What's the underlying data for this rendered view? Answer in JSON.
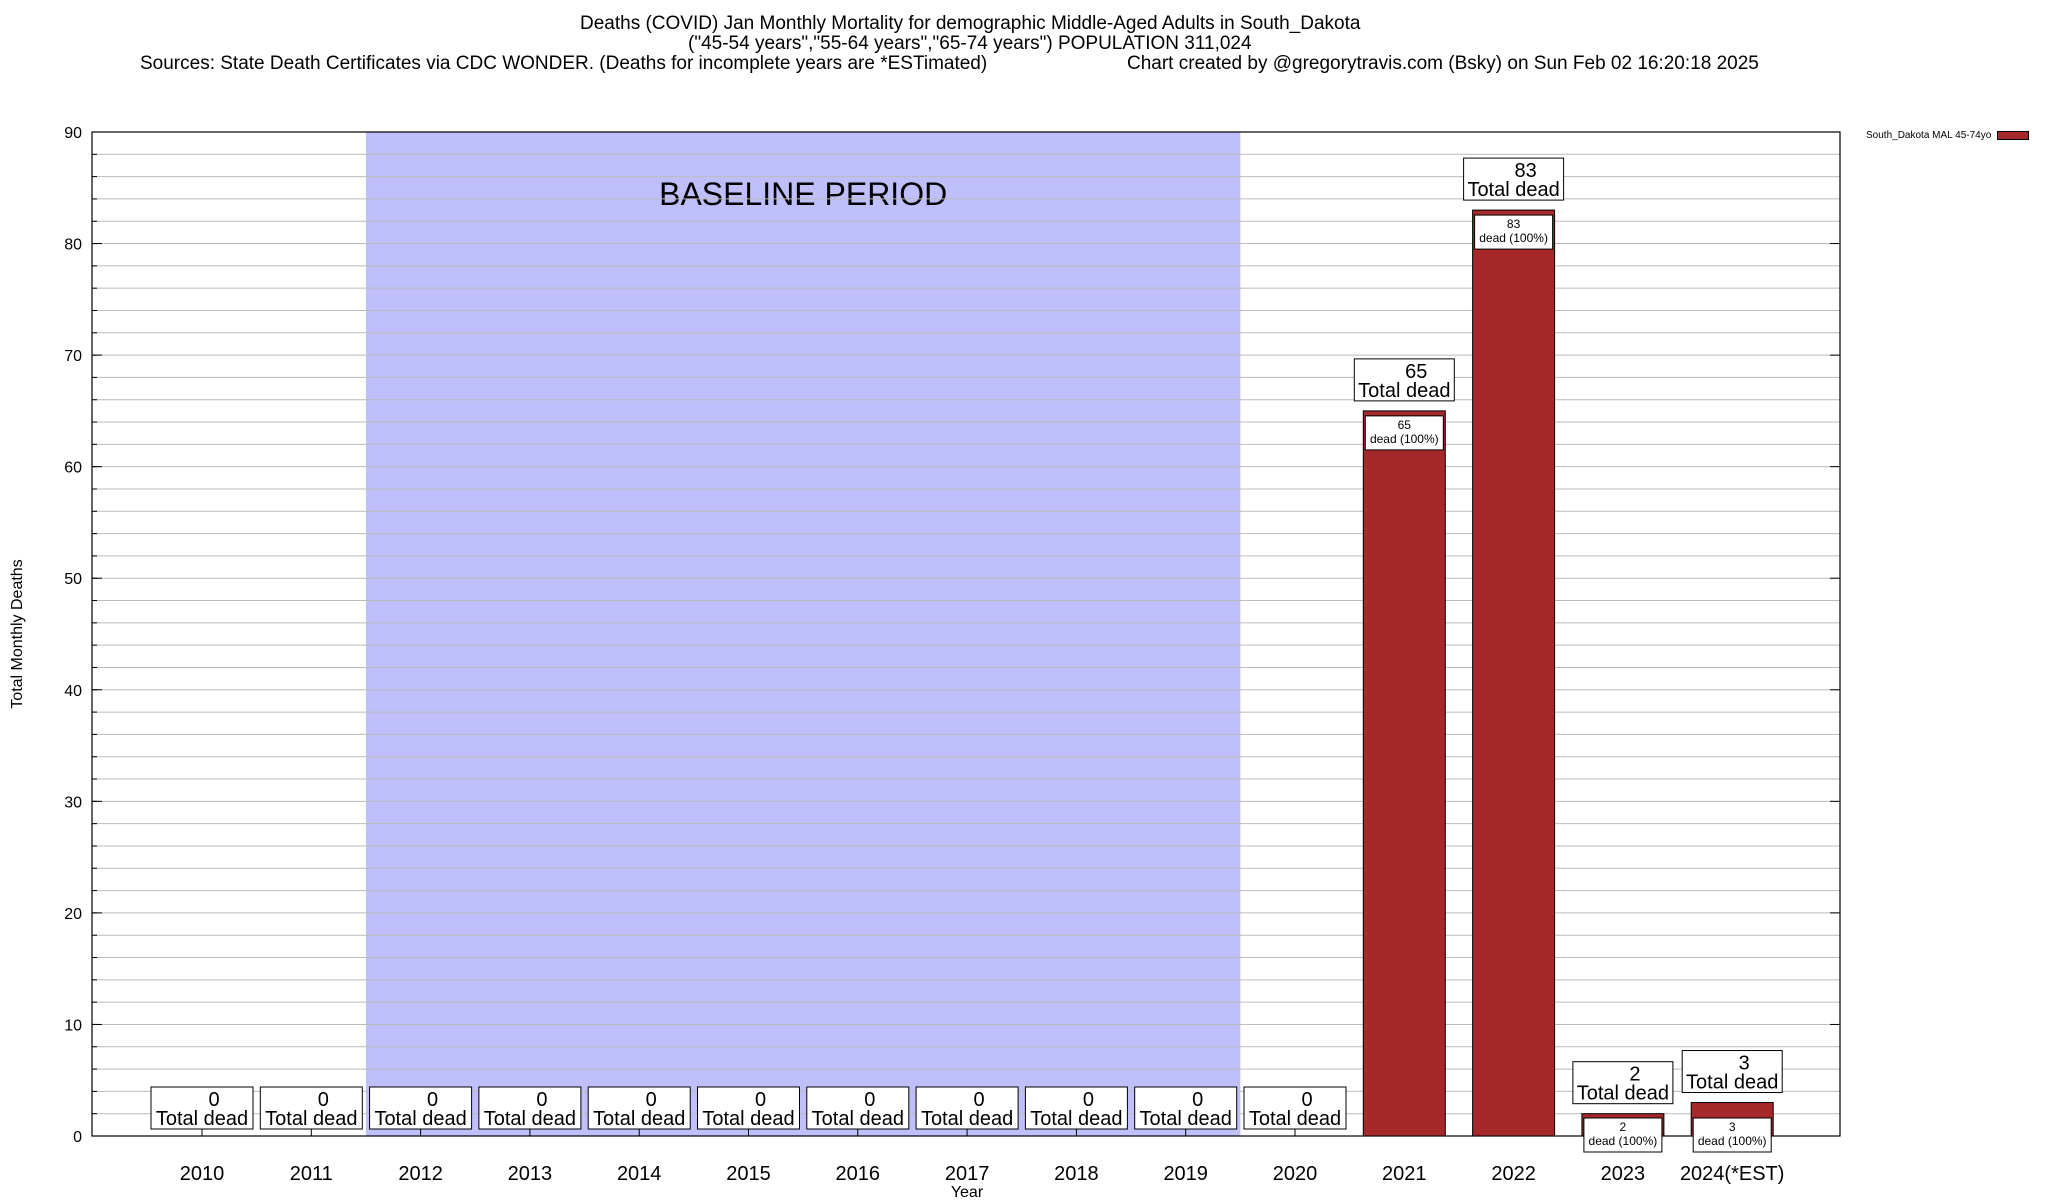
{
  "header": {
    "title_line1": "Deaths (COVID) Jan Monthly Mortality for demographic Middle-Aged Adults in South_Dakota",
    "title_line2": "(\"45-54 years\",\"55-64 years\",\"65-74 years\") POPULATION 311,024",
    "sources": "Sources: State Death Certificates via CDC WONDER. (Deaths for incomplete years are *ESTimated)",
    "credit": "Chart created by @gregorytravis.com (Bsky) on Sun Feb 02 16:20:18 2025"
  },
  "chart_data": {
    "type": "bar",
    "xlabel": "Year",
    "ylabel": "Total Monthly Deaths",
    "ylim": [
      0,
      90
    ],
    "y_ticks": [
      0,
      10,
      20,
      30,
      40,
      50,
      60,
      70,
      80,
      90
    ],
    "categories": [
      "2010",
      "2011",
      "2012",
      "2013",
      "2014",
      "2015",
      "2016",
      "2017",
      "2018",
      "2019",
      "2020",
      "2021",
      "2022",
      "2023",
      "2024(*EST)"
    ],
    "series": [
      {
        "name": "South_Dakota MAL 45-74yo",
        "values": [
          0,
          0,
          0,
          0,
          0,
          0,
          0,
          0,
          0,
          0,
          0,
          65,
          83,
          2,
          3
        ]
      }
    ],
    "total_label_suffix": "Total dead",
    "segment_label_suffix": "dead (100%)",
    "baseline": {
      "label": "BASELINE PERIOD",
      "from": "2012",
      "to": "2019"
    },
    "grid": true,
    "legend_position": "top-right",
    "colors": {
      "bar": "#a5292a",
      "baseline": "#bfbffc",
      "grid": "#bbbbbb"
    }
  }
}
